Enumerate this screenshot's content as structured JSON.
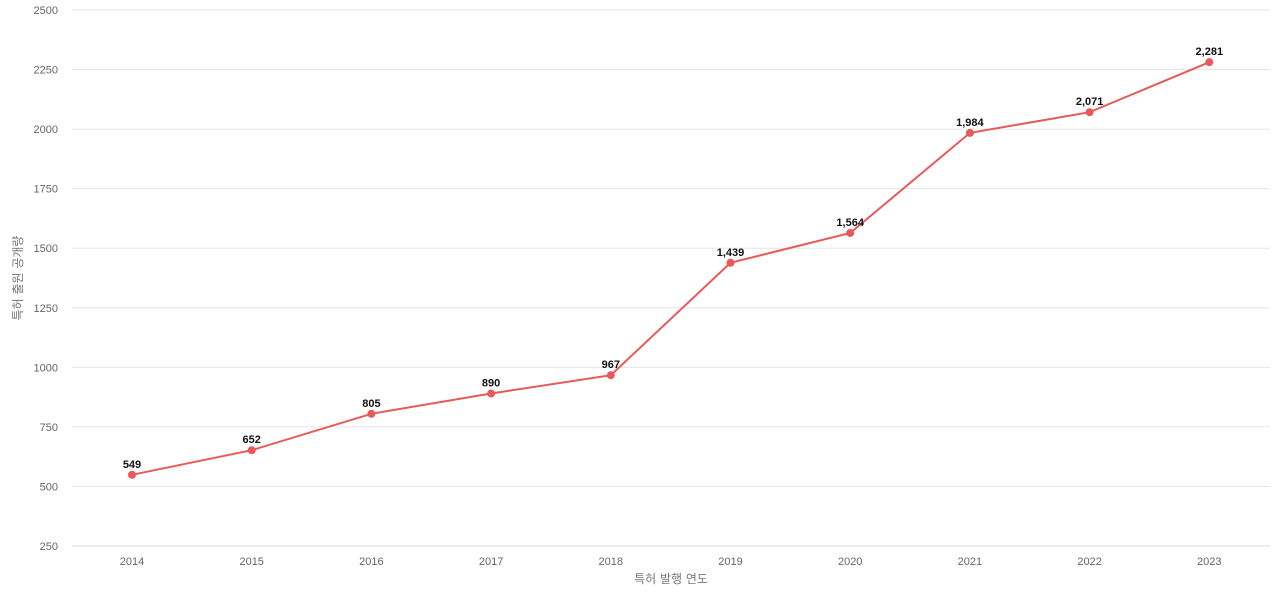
{
  "chart_data": {
    "type": "line",
    "title": "",
    "xlabel": "특허 발행 연도",
    "ylabel": "특허 출원 공개량",
    "x": [
      "2014",
      "2015",
      "2016",
      "2017",
      "2018",
      "2019",
      "2020",
      "2021",
      "2022",
      "2023"
    ],
    "series": [
      {
        "values": [
          549,
          652,
          805,
          890,
          967,
          1439,
          1564,
          1984,
          2071,
          2281
        ],
        "labels": [
          "549",
          "652",
          "805",
          "890",
          "967",
          "1,439",
          "1,564",
          "1,984",
          "2,071",
          "2,281"
        ],
        "color": "#e85a5a"
      }
    ],
    "ylim": [
      250,
      2500
    ],
    "yticks": [
      "250",
      "500",
      "750",
      "1000",
      "1250",
      "1500",
      "1750",
      "2000",
      "2250",
      "2500"
    ],
    "grid": true,
    "legend": "none"
  }
}
